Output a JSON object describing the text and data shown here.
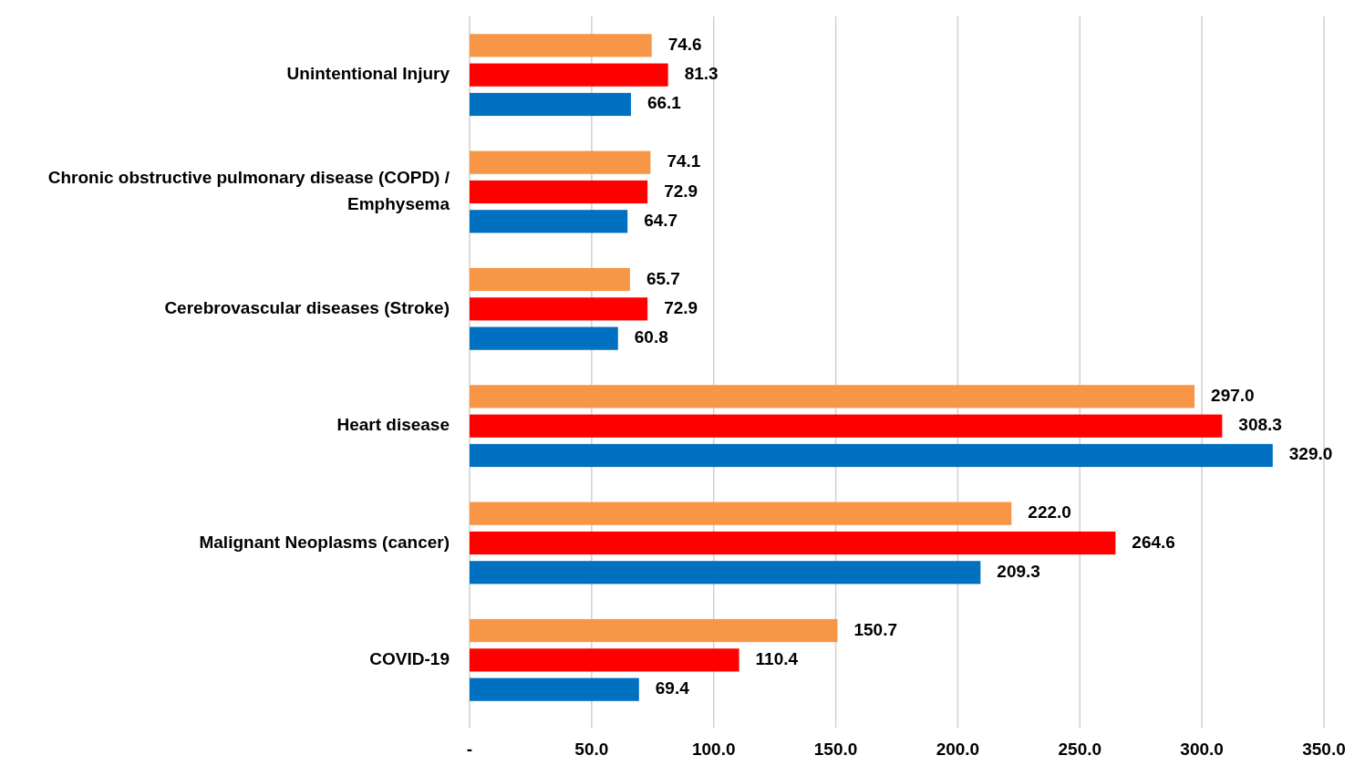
{
  "chart_data": {
    "type": "bar",
    "orientation": "horizontal",
    "categories": [
      "Unintentional Injury",
      "Chronic obstructive pulmonary disease (COPD) / Emphysema",
      "Cerebrovascular diseases (Stroke)",
      "Heart disease",
      "Malignant Neoplasms (cancer)",
      "COVID-19"
    ],
    "series": [
      {
        "color": "#f79646",
        "values": [
          74.6,
          74.1,
          65.7,
          297.0,
          222.0,
          150.7
        ],
        "value_labels": [
          "74.6",
          "74.1",
          "65.7",
          "297.0",
          "222.0",
          "150.7"
        ]
      },
      {
        "color": "#ff0000",
        "values": [
          81.3,
          72.9,
          72.9,
          308.3,
          264.6,
          110.4
        ],
        "value_labels": [
          "81.3",
          "72.9",
          "72.9",
          "308.3",
          "264.6",
          "110.4"
        ]
      },
      {
        "color": "#0070c0",
        "values": [
          66.1,
          64.7,
          60.8,
          329.0,
          209.3,
          69.4
        ],
        "value_labels": [
          "66.1",
          "64.7",
          "60.8",
          "329.0",
          "209.3",
          "69.4"
        ]
      }
    ],
    "xlim": [
      0,
      350
    ],
    "xticks": [
      {
        "value": 0,
        "label": "-"
      },
      {
        "value": 50,
        "label": "50.0"
      },
      {
        "value": 100,
        "label": "100.0"
      },
      {
        "value": 150,
        "label": "150.0"
      },
      {
        "value": 200,
        "label": "200.0"
      },
      {
        "value": 250,
        "label": "250.0"
      },
      {
        "value": 300,
        "label": "300.0"
      },
      {
        "value": 350,
        "label": "350.0"
      }
    ],
    "grid": "x"
  }
}
